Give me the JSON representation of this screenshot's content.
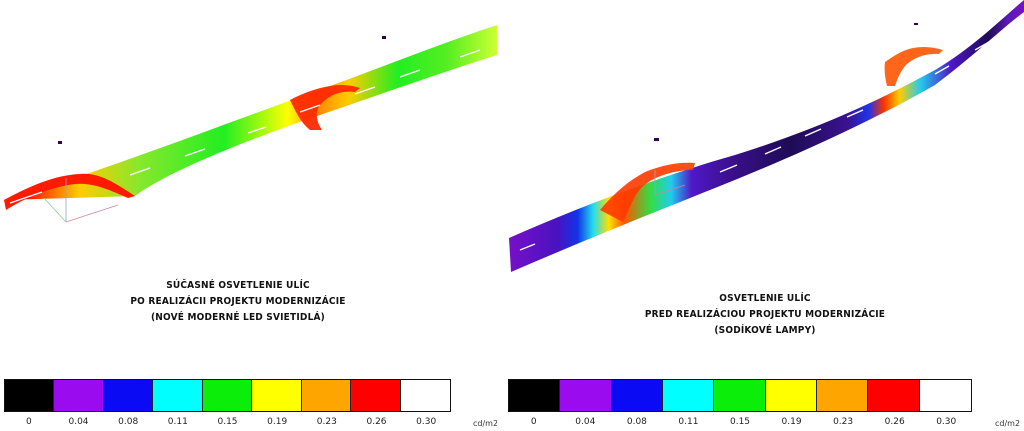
{
  "left_panel": {
    "caption": [
      "SÚČASNÉ OSVETLENIE ULÍC",
      "PO REALIZÁCII PROJEKTU MODERNIZÁCIE",
      "(NOVÉ MODERNÉ LED SVIETIDLÁ)"
    ],
    "unit": "cd/m2"
  },
  "right_panel": {
    "caption": [
      "OSVETLENIE ULÍC",
      "PRED REALIZÁCIOU PROJEKTU MODERNIZÁCIE",
      "(SODÍKOVÉ LAMPY)"
    ],
    "unit": "cd/m2"
  },
  "scale": {
    "colors": [
      "#000000",
      "#9b0bf0",
      "#0a0af5",
      "#00ffff",
      "#0aee0a",
      "#ffff00",
      "#ffa500",
      "#ff0000",
      "#ffffff"
    ],
    "labels": [
      "0",
      "0.04",
      "0.08",
      "0.11",
      "0.15",
      "0.19",
      "0.23",
      "0.26",
      "0.30"
    ]
  }
}
